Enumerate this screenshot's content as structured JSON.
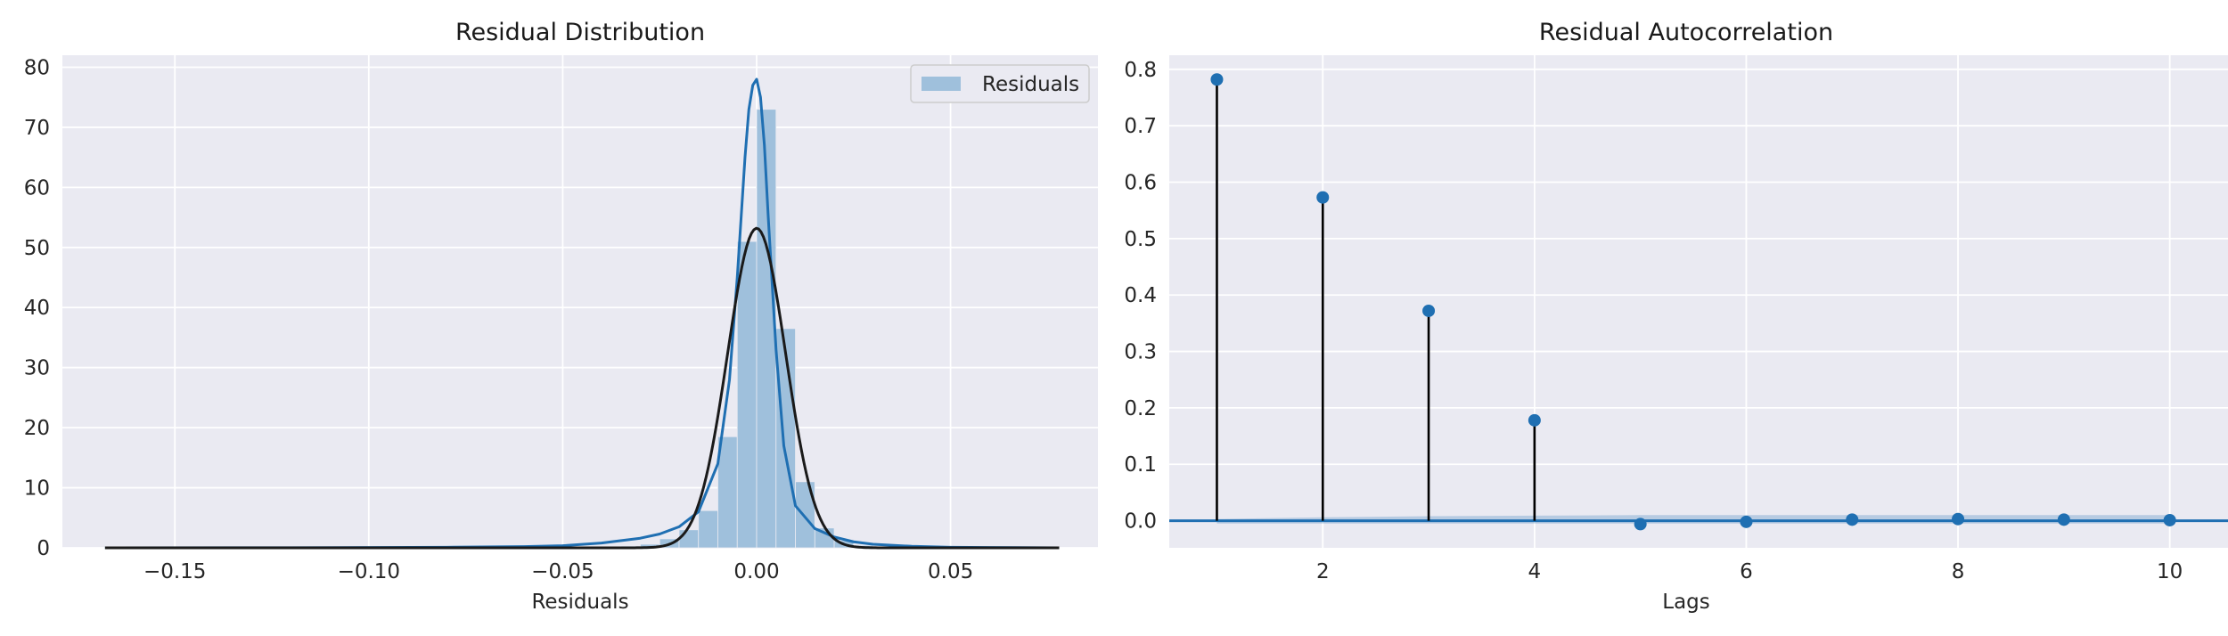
{
  "chart_data": [
    {
      "type": "bar",
      "title": "Residual Distribution",
      "xlabel": "Residuals",
      "ylabel": "",
      "xlim": [
        -0.179,
        0.088
      ],
      "ylim": [
        0,
        82
      ],
      "xticks": [
        -0.15,
        -0.1,
        -0.05,
        0.0,
        0.05
      ],
      "xtick_labels": [
        "−0.15",
        "−0.10",
        "−0.05",
        "0.00",
        "0.05"
      ],
      "yticks": [
        0,
        10,
        20,
        30,
        40,
        50,
        60,
        70,
        80
      ],
      "ytick_labels": [
        "0",
        "10",
        "20",
        "30",
        "40",
        "50",
        "60",
        "70",
        "80"
      ],
      "grid": true,
      "legend": {
        "placement": "top-right",
        "entries": [
          "Residuals"
        ]
      },
      "histogram": {
        "bin_width": 0.005,
        "bins": [
          {
            "x": -0.0325,
            "v": 0.3
          },
          {
            "x": -0.0275,
            "v": 0.6
          },
          {
            "x": -0.0225,
            "v": 1.5
          },
          {
            "x": -0.0175,
            "v": 3.0
          },
          {
            "x": -0.0125,
            "v": 6.2
          },
          {
            "x": -0.0075,
            "v": 18.5
          },
          {
            "x": -0.0025,
            "v": 51.0
          },
          {
            "x": 0.0025,
            "v": 73.0
          },
          {
            "x": 0.0075,
            "v": 36.5
          },
          {
            "x": 0.0125,
            "v": 11.0
          },
          {
            "x": 0.0175,
            "v": 3.3
          },
          {
            "x": 0.0225,
            "v": 1.2
          },
          {
            "x": 0.0275,
            "v": 0.4
          },
          {
            "x": 0.0325,
            "v": 0.2
          }
        ]
      },
      "kde": {
        "name": "Residuals",
        "x": [
          -0.168,
          -0.12,
          -0.08,
          -0.06,
          -0.05,
          -0.04,
          -0.03,
          -0.025,
          -0.02,
          -0.015,
          -0.01,
          -0.007,
          -0.005,
          -0.003,
          -0.002,
          -0.001,
          0.0,
          0.001,
          0.002,
          0.003,
          0.005,
          0.007,
          0.01,
          0.015,
          0.02,
          0.025,
          0.03,
          0.04,
          0.05,
          0.06,
          0.078
        ],
        "y": [
          0.0,
          0.02,
          0.1,
          0.2,
          0.35,
          0.8,
          1.6,
          2.3,
          3.5,
          6.0,
          14.0,
          28.0,
          45.0,
          65.0,
          73.0,
          77.0,
          78.0,
          75.0,
          67.0,
          55.0,
          33.0,
          17.0,
          7.0,
          3.2,
          1.8,
          1.0,
          0.6,
          0.25,
          0.1,
          0.05,
          0.0
        ]
      },
      "normal_fit": {
        "mean": 0.0,
        "std": 0.0075
      }
    },
    {
      "type": "scatter",
      "style": "stem",
      "title": "Residual Autocorrelation",
      "xlabel": "Lags",
      "ylabel": "",
      "xlim": [
        0.55,
        10.55
      ],
      "ylim": [
        -0.048,
        0.825
      ],
      "xticks": [
        2,
        4,
        6,
        8,
        10
      ],
      "xtick_labels": [
        "2",
        "4",
        "6",
        "8",
        "10"
      ],
      "yticks": [
        0.0,
        0.1,
        0.2,
        0.3,
        0.4,
        0.5,
        0.6,
        0.7,
        0.8
      ],
      "ytick_labels": [
        "0.0",
        "0.1",
        "0.2",
        "0.3",
        "0.4",
        "0.5",
        "0.6",
        "0.7",
        "0.8"
      ],
      "grid": true,
      "lags": [
        1,
        2,
        3,
        4,
        5,
        6,
        7,
        8,
        9,
        10
      ],
      "values": [
        0.782,
        0.573,
        0.372,
        0.178,
        -0.006,
        -0.002,
        0.002,
        0.003,
        0.002,
        0.001
      ],
      "confidence_band": {
        "x_start": 1,
        "x_end": 10,
        "lower": -0.005,
        "upper": [
          0.003,
          0.006,
          0.008,
          0.009,
          0.01,
          0.01,
          0.01,
          0.01,
          0.01,
          0.01
        ]
      },
      "zero_line": 0.0
    }
  ],
  "colors": {
    "background": "#eaeaf2",
    "grid": "#ffffff",
    "accent": "#1f6fb2",
    "hist_fill": "#9fc0dc",
    "normal_fit": "#1a1a1a",
    "stem": "#000000"
  }
}
